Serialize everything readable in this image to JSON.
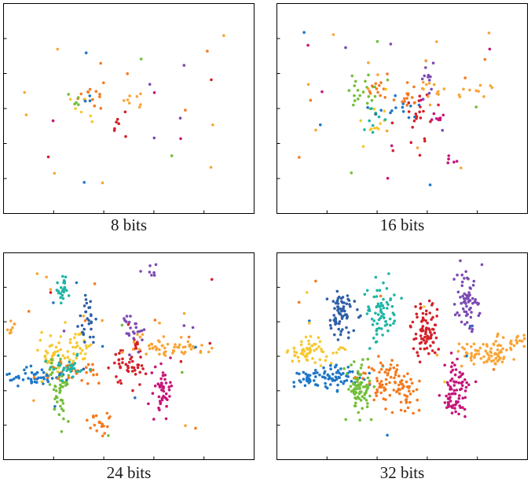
{
  "palette": {
    "blue": "#1f77c8",
    "orange": "#f47a20",
    "yellow": "#f6c82d",
    "purple": "#7b4bb3",
    "green": "#72bf3a",
    "cyan": "#1fb5a5",
    "red": "#d42027",
    "magenta": "#c6157a",
    "lightorange": "#f9a435",
    "darkblue": "#2f5fa8"
  },
  "chart_data": [
    {
      "type": "scatter",
      "title": "8 bits",
      "xlim": [
        0,
        100
      ],
      "ylim": [
        0,
        100
      ],
      "grid": false,
      "clusters": [
        {
          "color": "orange",
          "cx": 35,
          "cy": 56,
          "sx": 2.5,
          "sy": 4,
          "n": 14
        },
        {
          "color": "yellow",
          "cx": 33,
          "cy": 52,
          "sx": 2.5,
          "sy": 4,
          "n": 6
        },
        {
          "color": "lightorange",
          "cx": 50,
          "cy": 54,
          "sx": 3,
          "sy": 2.5,
          "n": 8
        },
        {
          "color": "red",
          "cx": 46,
          "cy": 43,
          "sx": 1.5,
          "sy": 4,
          "n": 7
        },
        {
          "color": "green",
          "cx": 30,
          "cy": 54,
          "sx": 2,
          "sy": 3,
          "n": 4
        },
        {
          "color": "blue",
          "cx": 34,
          "cy": 55,
          "sx": 2,
          "sy": 2,
          "n": 3
        }
      ],
      "scatter": [
        {
          "color": "lightorange",
          "n": 8
        },
        {
          "color": "orange",
          "n": 4
        },
        {
          "color": "purple",
          "n": 4
        },
        {
          "color": "green",
          "n": 3
        },
        {
          "color": "magenta",
          "n": 3
        },
        {
          "color": "blue",
          "n": 2
        },
        {
          "color": "red",
          "n": 2
        }
      ]
    },
    {
      "type": "scatter",
      "title": "16 bits",
      "xlim": [
        0,
        100
      ],
      "ylim": [
        0,
        100
      ],
      "grid": false,
      "clusters": [
        {
          "color": "green",
          "cx": 34,
          "cy": 58,
          "sx": 4,
          "sy": 5,
          "n": 22
        },
        {
          "color": "orange",
          "cx": 41,
          "cy": 60,
          "sx": 2,
          "sy": 3,
          "n": 12
        },
        {
          "color": "yellow",
          "cx": 39,
          "cy": 44,
          "sx": 2.5,
          "sy": 4,
          "n": 12
        },
        {
          "color": "cyan",
          "cx": 40,
          "cy": 44,
          "sx": 2,
          "sy": 4,
          "n": 8
        },
        {
          "color": "blue",
          "cx": 47,
          "cy": 50,
          "sx": 5,
          "sy": 4,
          "n": 14
        },
        {
          "color": "orange",
          "cx": 52,
          "cy": 56,
          "sx": 3,
          "sy": 3,
          "n": 14
        },
        {
          "color": "red",
          "cx": 56,
          "cy": 46,
          "sx": 3,
          "sy": 7,
          "n": 22
        },
        {
          "color": "magenta",
          "cx": 64,
          "cy": 46,
          "sx": 2,
          "sy": 2,
          "n": 8
        },
        {
          "color": "purple",
          "cx": 60,
          "cy": 64,
          "sx": 2,
          "sy": 6,
          "n": 12
        },
        {
          "color": "lightorange",
          "cx": 62,
          "cy": 58,
          "sx": 3,
          "sy": 3,
          "n": 12
        },
        {
          "color": "lightorange",
          "cx": 79,
          "cy": 58,
          "sx": 4,
          "sy": 2,
          "n": 10
        },
        {
          "color": "magenta",
          "cx": 70,
          "cy": 25,
          "sx": 2,
          "sy": 2,
          "n": 5
        }
      ],
      "scatter": [
        {
          "color": "lightorange",
          "n": 12
        },
        {
          "color": "orange",
          "n": 4
        },
        {
          "color": "magenta",
          "n": 6
        },
        {
          "color": "green",
          "n": 3
        },
        {
          "color": "blue",
          "n": 3
        },
        {
          "color": "purple",
          "n": 3
        },
        {
          "color": "yellow",
          "n": 2
        }
      ]
    },
    {
      "type": "scatter",
      "title": "24 bits",
      "xlim": [
        0,
        100
      ],
      "ylim": [
        0,
        100
      ],
      "grid": false,
      "clusters": [
        {
          "color": "cyan",
          "cx": 24,
          "cy": 83,
          "sx": 1.8,
          "sy": 4,
          "n": 28
        },
        {
          "color": "lightorange",
          "cx": 3,
          "cy": 64,
          "sx": 2,
          "sy": 1.5,
          "n": 10
        },
        {
          "color": "yellow",
          "cx": 19,
          "cy": 51,
          "sx": 3,
          "sy": 6,
          "n": 40
        },
        {
          "color": "yellow",
          "cx": 30,
          "cy": 52,
          "sx": 3,
          "sy": 5,
          "n": 30
        },
        {
          "color": "blue",
          "cx": 12,
          "cy": 40,
          "sx": 6,
          "sy": 2,
          "n": 50
        },
        {
          "color": "green",
          "cx": 22,
          "cy": 33,
          "sx": 2,
          "sy": 8,
          "n": 45
        },
        {
          "color": "orange",
          "cx": 28,
          "cy": 42,
          "sx": 6,
          "sy": 3,
          "n": 35
        },
        {
          "color": "cyan",
          "cx": 26,
          "cy": 45,
          "sx": 4,
          "sy": 3,
          "n": 30
        },
        {
          "color": "darkblue",
          "cx": 34,
          "cy": 67,
          "sx": 2,
          "sy": 7,
          "n": 30
        },
        {
          "color": "orange",
          "cx": 38,
          "cy": 18,
          "sx": 2,
          "sy": 4,
          "n": 20
        },
        {
          "color": "red",
          "cx": 50,
          "cy": 46,
          "sx": 4,
          "sy": 6,
          "n": 50
        },
        {
          "color": "purple",
          "cx": 52,
          "cy": 63,
          "sx": 2,
          "sy": 5,
          "n": 22
        },
        {
          "color": "lightorange",
          "cx": 60,
          "cy": 55,
          "sx": 5,
          "sy": 3,
          "n": 30
        },
        {
          "color": "lightorange",
          "cx": 73,
          "cy": 54,
          "sx": 5,
          "sy": 1.5,
          "n": 25
        },
        {
          "color": "magenta",
          "cx": 63,
          "cy": 33,
          "sx": 2,
          "sy": 7,
          "n": 45
        },
        {
          "color": "purple",
          "cx": 59,
          "cy": 91,
          "sx": 1.5,
          "sy": 2,
          "n": 7
        }
      ],
      "scatter": [
        {
          "color": "lightorange",
          "n": 10
        },
        {
          "color": "orange",
          "n": 6
        },
        {
          "color": "blue",
          "n": 6
        },
        {
          "color": "green",
          "n": 5
        },
        {
          "color": "purple",
          "n": 4
        },
        {
          "color": "red",
          "n": 4
        }
      ]
    },
    {
      "type": "scatter",
      "title": "32 bits",
      "xlim": [
        0,
        100
      ],
      "ylim": [
        0,
        100
      ],
      "grid": false,
      "clusters": [
        {
          "color": "darkblue",
          "cx": 25,
          "cy": 69,
          "sx": 3,
          "sy": 6,
          "n": 70
        },
        {
          "color": "cyan",
          "cx": 42,
          "cy": 72,
          "sx": 3,
          "sy": 8,
          "n": 70
        },
        {
          "color": "yellow",
          "cx": 14,
          "cy": 52,
          "sx": 5,
          "sy": 3,
          "n": 60
        },
        {
          "color": "blue",
          "cx": 20,
          "cy": 40,
          "sx": 7,
          "sy": 3,
          "n": 90
        },
        {
          "color": "green",
          "cx": 33,
          "cy": 33,
          "sx": 2.5,
          "sy": 7,
          "n": 80
        },
        {
          "color": "orange",
          "cx": 44,
          "cy": 38,
          "sx": 4,
          "sy": 5,
          "n": 60
        },
        {
          "color": "orange",
          "cx": 51,
          "cy": 32,
          "sx": 2.5,
          "sy": 5,
          "n": 40
        },
        {
          "color": "red",
          "cx": 59,
          "cy": 62,
          "sx": 2.5,
          "sy": 7,
          "n": 80
        },
        {
          "color": "purple",
          "cx": 76,
          "cy": 75,
          "sx": 2.5,
          "sy": 9,
          "n": 70
        },
        {
          "color": "lightorange",
          "cx": 83,
          "cy": 52,
          "sx": 6,
          "sy": 4,
          "n": 80
        },
        {
          "color": "lightorange",
          "cx": 96,
          "cy": 58,
          "sx": 3,
          "sy": 1.2,
          "n": 15
        },
        {
          "color": "magenta",
          "cx": 71,
          "cy": 33,
          "sx": 3,
          "sy": 7,
          "n": 80
        }
      ],
      "scatter": [
        {
          "color": "orange",
          "n": 6
        },
        {
          "color": "blue",
          "n": 4
        },
        {
          "color": "yellow",
          "n": 4
        }
      ]
    }
  ]
}
